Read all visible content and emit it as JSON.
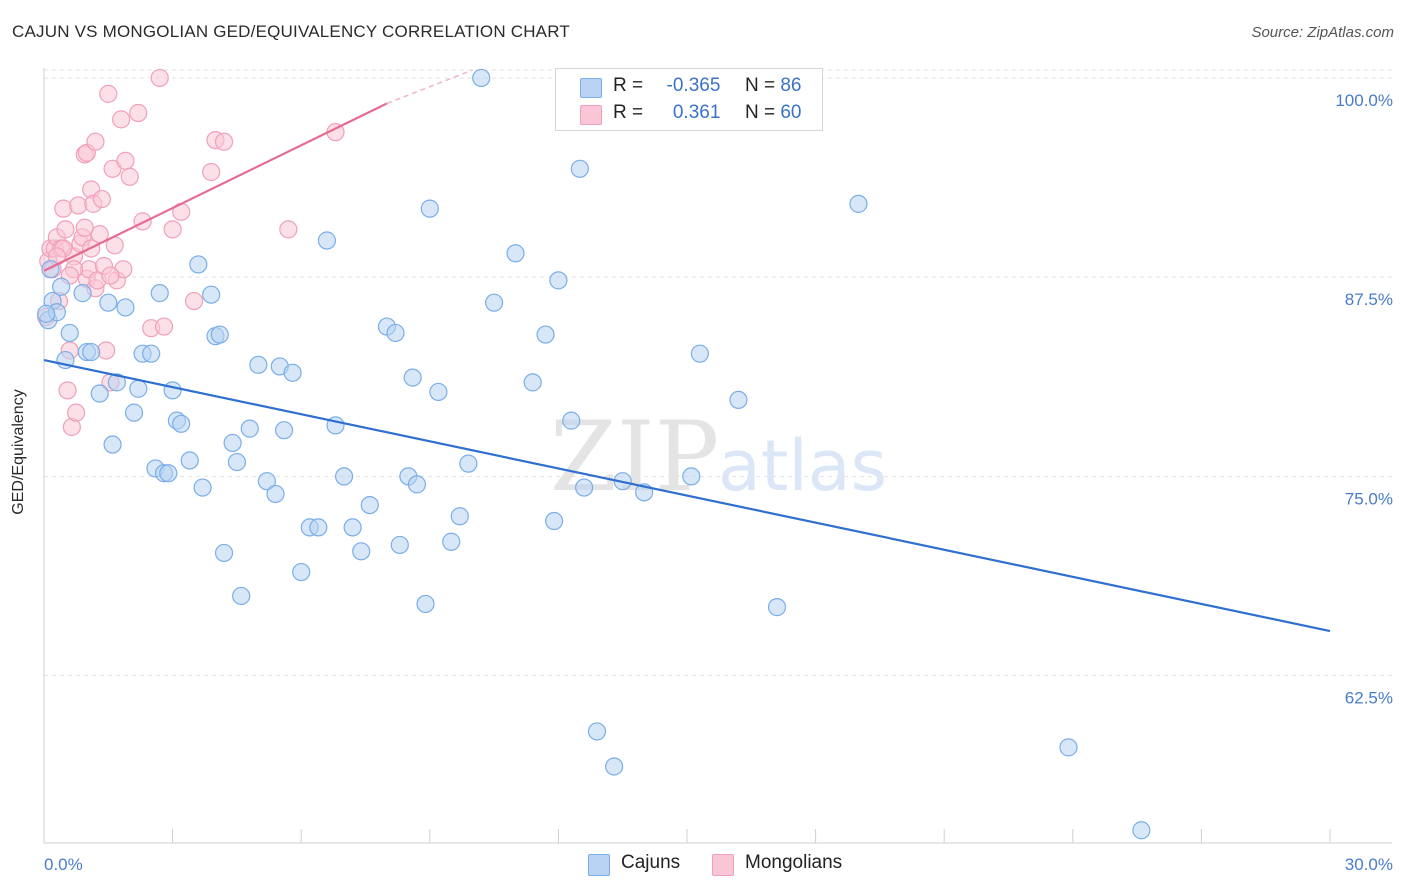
{
  "header": {
    "title": "CAJUN VS MONGOLIAN GED/EQUIVALENCY CORRELATION CHART",
    "source": "Source: ZipAtlas.com"
  },
  "watermark": {
    "zip": "ZIP",
    "atlas": "atlas"
  },
  "stats": [
    {
      "r_label": "R =",
      "r_value": "-0.365",
      "n_label": "N =",
      "n_value": "86",
      "color": "#7aaee8",
      "fill": "#b8d3f3"
    },
    {
      "r_label": "R =",
      "r_value": "0.361",
      "n_label": "N =",
      "n_value": "60",
      "color": "#f0a0ba",
      "fill": "#f9c6d6"
    }
  ],
  "legend": [
    {
      "label": "Cajuns",
      "fill": "#b8d3f3",
      "stroke": "#7aaee8"
    },
    {
      "label": "Mongolians",
      "fill": "#f9c6d6",
      "stroke": "#f0a0ba"
    }
  ],
  "chart_data": {
    "type": "scatter",
    "title": "CAJUN VS MONGOLIAN GED/EQUIVALENCY CORRELATION CHART",
    "xlabel": "",
    "ylabel": "GED/Equivalency",
    "xlim": [
      0,
      30
    ],
    "ylim": [
      52,
      101
    ],
    "x_tick_labels": [
      "0.0%",
      "30.0%"
    ],
    "y_ticks": [
      62.5,
      75,
      87.5,
      100
    ],
    "y_tick_labels": [
      "62.5%",
      "75.0%",
      "87.5%",
      "100.0%"
    ],
    "grid": true,
    "series": [
      {
        "name": "Cajuns",
        "color": "#7aaee8",
        "fill": "#b8d3f3",
        "trend": {
          "x": [
            0,
            30
          ],
          "y": [
            82.3,
            65.3
          ],
          "color": "#2f6fd0"
        },
        "points": [
          [
            0.1,
            84.8
          ],
          [
            0.2,
            86.0
          ],
          [
            0.3,
            85.3
          ],
          [
            0.4,
            86.9
          ],
          [
            0.5,
            82.3
          ],
          [
            0.6,
            84.0
          ],
          [
            0.9,
            86.5
          ],
          [
            1.0,
            82.8
          ],
          [
            1.1,
            82.8
          ],
          [
            1.3,
            80.2
          ],
          [
            1.5,
            85.9
          ],
          [
            1.6,
            77.0
          ],
          [
            1.7,
            80.9
          ],
          [
            1.9,
            85.6
          ],
          [
            2.1,
            79.0
          ],
          [
            2.2,
            80.5
          ],
          [
            2.3,
            82.7
          ],
          [
            2.5,
            82.7
          ],
          [
            2.6,
            75.5
          ],
          [
            2.7,
            86.5
          ],
          [
            2.8,
            75.2
          ],
          [
            2.9,
            75.2
          ],
          [
            3.0,
            80.4
          ],
          [
            3.1,
            78.5
          ],
          [
            3.2,
            78.3
          ],
          [
            3.4,
            76.0
          ],
          [
            3.6,
            88.3
          ],
          [
            3.7,
            74.3
          ],
          [
            3.9,
            86.4
          ],
          [
            4.0,
            83.8
          ],
          [
            4.1,
            83.9
          ],
          [
            4.2,
            70.2
          ],
          [
            4.4,
            77.1
          ],
          [
            4.5,
            75.9
          ],
          [
            4.6,
            67.5
          ],
          [
            4.8,
            78.0
          ],
          [
            5.0,
            82.0
          ],
          [
            5.2,
            74.7
          ],
          [
            5.4,
            73.9
          ],
          [
            5.5,
            81.9
          ],
          [
            5.6,
            77.9
          ],
          [
            5.8,
            81.5
          ],
          [
            6.0,
            69.0
          ],
          [
            6.2,
            71.8
          ],
          [
            6.4,
            71.8
          ],
          [
            6.6,
            89.8
          ],
          [
            6.8,
            78.2
          ],
          [
            7.0,
            75.0
          ],
          [
            7.2,
            71.8
          ],
          [
            7.4,
            70.3
          ],
          [
            7.6,
            73.2
          ],
          [
            8.0,
            84.4
          ],
          [
            8.2,
            84.0
          ],
          [
            8.3,
            70.7
          ],
          [
            8.5,
            75.0
          ],
          [
            8.6,
            81.2
          ],
          [
            8.7,
            74.5
          ],
          [
            8.9,
            67.0
          ],
          [
            9.0,
            91.8
          ],
          [
            9.2,
            80.3
          ],
          [
            9.5,
            70.9
          ],
          [
            9.7,
            72.5
          ],
          [
            9.9,
            75.8
          ],
          [
            10.2,
            100.0
          ],
          [
            10.5,
            85.9
          ],
          [
            11.0,
            89.0
          ],
          [
            11.4,
            80.9
          ],
          [
            11.7,
            83.9
          ],
          [
            11.9,
            72.2
          ],
          [
            12.0,
            87.3
          ],
          [
            12.3,
            78.5
          ],
          [
            12.5,
            94.3
          ],
          [
            12.6,
            74.3
          ],
          [
            12.9,
            59.0
          ],
          [
            13.3,
            56.8
          ],
          [
            13.5,
            74.7
          ],
          [
            14.0,
            74.0
          ],
          [
            15.1,
            75.0
          ],
          [
            15.3,
            82.7
          ],
          [
            16.2,
            79.8
          ],
          [
            17.1,
            66.8
          ],
          [
            19.0,
            92.1
          ],
          [
            23.9,
            58.0
          ],
          [
            25.6,
            52.8
          ],
          [
            0.15,
            88.0
          ],
          [
            0.05,
            85.2
          ]
        ]
      },
      {
        "name": "Mongolians",
        "color": "#f0a0ba",
        "fill": "#f9c6d6",
        "trend": {
          "x": [
            0,
            8.0
          ],
          "y": [
            87.9,
            98.4
          ],
          "dash_to": [
            10.0,
            100.5
          ],
          "color": "#e66a92"
        },
        "points": [
          [
            0.05,
            85.0
          ],
          [
            0.1,
            88.5
          ],
          [
            0.15,
            89.3
          ],
          [
            0.2,
            88.0
          ],
          [
            0.25,
            89.3
          ],
          [
            0.3,
            90.0
          ],
          [
            0.35,
            86.0
          ],
          [
            0.4,
            89.3
          ],
          [
            0.45,
            91.8
          ],
          [
            0.5,
            90.5
          ],
          [
            0.55,
            80.4
          ],
          [
            0.6,
            82.9
          ],
          [
            0.65,
            78.1
          ],
          [
            0.7,
            88.8
          ],
          [
            0.75,
            79.0
          ],
          [
            0.8,
            92.0
          ],
          [
            0.85,
            89.6
          ],
          [
            0.9,
            90.0
          ],
          [
            0.95,
            95.2
          ],
          [
            1.0,
            87.4
          ],
          [
            1.05,
            88.0
          ],
          [
            1.1,
            93.0
          ],
          [
            1.15,
            92.1
          ],
          [
            1.2,
            86.8
          ],
          [
            1.25,
            87.3
          ],
          [
            1.3,
            90.2
          ],
          [
            1.35,
            92.4
          ],
          [
            1.4,
            88.2
          ],
          [
            1.45,
            82.9
          ],
          [
            1.5,
            99.0
          ],
          [
            1.55,
            80.9
          ],
          [
            1.6,
            94.3
          ],
          [
            1.65,
            89.5
          ],
          [
            1.7,
            87.3
          ],
          [
            1.8,
            97.4
          ],
          [
            1.85,
            88.0
          ],
          [
            1.9,
            94.8
          ],
          [
            2.0,
            93.8
          ],
          [
            2.2,
            97.8
          ],
          [
            2.3,
            91.0
          ],
          [
            2.5,
            84.3
          ],
          [
            2.7,
            100.0
          ],
          [
            2.8,
            84.4
          ],
          [
            3.0,
            90.5
          ],
          [
            3.2,
            91.6
          ],
          [
            3.5,
            86.0
          ],
          [
            3.9,
            94.1
          ],
          [
            4.0,
            96.1
          ],
          [
            4.2,
            96.0
          ],
          [
            5.7,
            90.5
          ],
          [
            6.8,
            96.6
          ],
          [
            0.7,
            88.0
          ],
          [
            1.0,
            95.3
          ],
          [
            0.45,
            89.3
          ],
          [
            0.95,
            90.6
          ],
          [
            1.2,
            96.0
          ],
          [
            1.55,
            87.6
          ],
          [
            0.3,
            88.8
          ],
          [
            0.6,
            87.6
          ],
          [
            1.1,
            89.3
          ]
        ]
      }
    ]
  }
}
